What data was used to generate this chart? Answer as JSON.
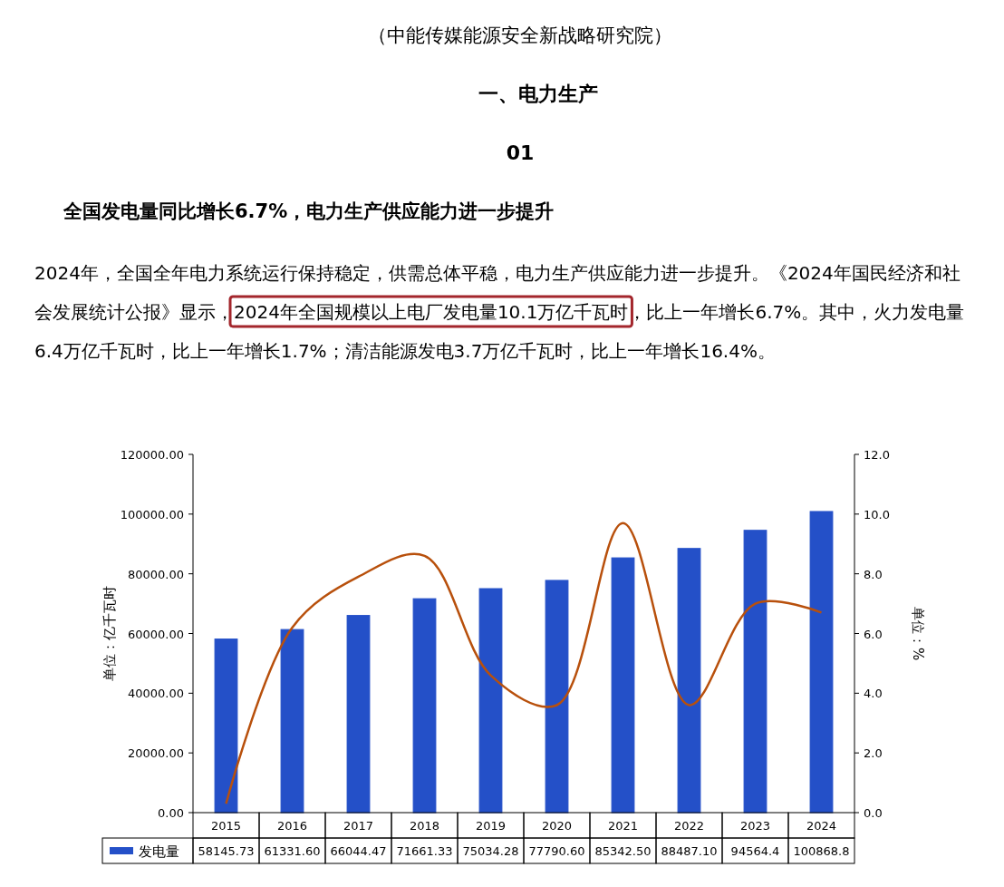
{
  "chart_data": {
    "type": "bar",
    "title": "一、电力生产",
    "subtitle": "01",
    "annotations": [
      "（中能传媒能源安全新战略研究院）",
      "全国发电量同比增长6.7%，电力生产供应能力进一步提升",
      "2024年，全国全年电力系统运行保持稳定，供需总体平稳，电力生产供应能力进一步提升。《2024年国民经济和社会发展统计公报》显示，",
      "2024年全国规模以上电厂发电量10.1万亿千瓦时",
      "，比上一年增长6.7%。其中，火力发电量6.4万亿千瓦时，比上一年增长1.7%；清洁能源发电3.7万亿千瓦时，比上一年增长16.4%。"
    ],
    "categories": [
      "2015",
      "2016",
      "2017",
      "2018",
      "2019",
      "2020",
      "2021",
      "2022",
      "2023",
      "2024"
    ],
    "series": [
      {
        "name": "发电量",
        "color": "#2450c8",
        "values": [
          58145.73,
          61331.6,
          66044.47,
          71661.33,
          75034.28,
          77790.6,
          85342.5,
          88487.1,
          94564.4,
          100868.8
        ],
        "value_labels": [
          "58145.73",
          "61331.60",
          "66044.47",
          "71661.33",
          "75034.28",
          "77790.60",
          "85342.50",
          "88487.10",
          "94564.4",
          "100868.8"
        ]
      },
      {
        "type": "line",
        "axis": "y2",
        "color": "#b8500c",
        "values": [
          0.3,
          6.2,
          7.9,
          8.6,
          4.6,
          3.6,
          9.7,
          3.6,
          7.0,
          6.7
        ]
      }
    ],
    "ylabel": "单位：亿千瓦时",
    "y2label": "单位：%",
    "ylim": [
      0,
      120000
    ],
    "yticks": [
      {
        "value": 0,
        "label": "0.00"
      },
      {
        "value": 20000,
        "label": "20000.00"
      },
      {
        "value": 40000,
        "label": "40000.00"
      },
      {
        "value": 60000,
        "label": "60000.00"
      },
      {
        "value": 80000,
        "label": "80000.00"
      },
      {
        "value": 100000,
        "label": "100000.00"
      },
      {
        "value": 120000,
        "label": "120000.00"
      }
    ],
    "y2lim": [
      0,
      12
    ],
    "y2ticks": [
      {
        "value": 0,
        "label": "0.0"
      },
      {
        "value": 2,
        "label": "2.0"
      },
      {
        "value": 4,
        "label": "4.0"
      },
      {
        "value": 6,
        "label": "6.0"
      },
      {
        "value": 8,
        "label": "8.0"
      },
      {
        "value": 10,
        "label": "10.0"
      },
      {
        "value": 12,
        "label": "12.0"
      }
    ],
    "legend": "bottom",
    "grid": false
  }
}
